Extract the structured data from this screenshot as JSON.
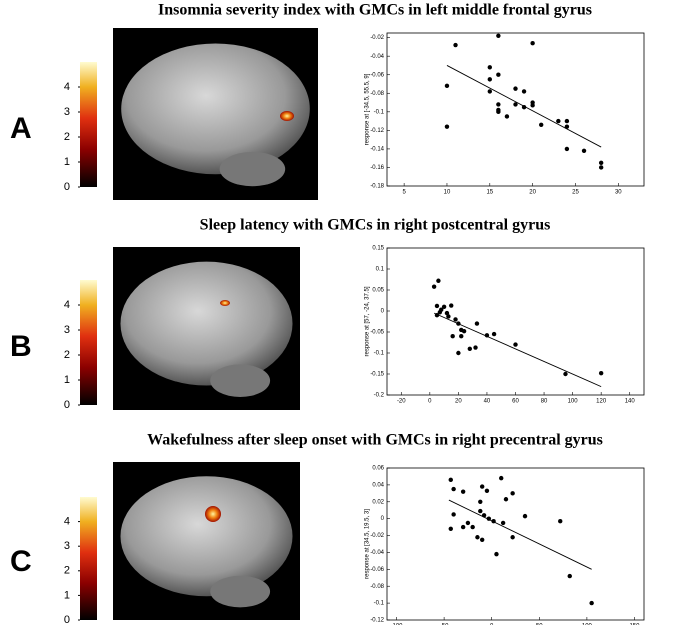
{
  "chart_data": [
    {
      "type": "scatter",
      "panel_label": "A",
      "title": "Insomnia severity index with GMCs in left middle frontal gyrus",
      "ylabel": "response at [-34.5, 55.5, 9]",
      "color": "#000000",
      "x": [
        10,
        10,
        11,
        15,
        15,
        16,
        16,
        16,
        16,
        16,
        17,
        18,
        18,
        19,
        20,
        20,
        20,
        21,
        23,
        24,
        24,
        24,
        26,
        28,
        28,
        15,
        19
      ],
      "values": [
        -0.072,
        -0.116,
        -0.028,
        -0.052,
        -0.065,
        -0.018,
        -0.06,
        -0.092,
        -0.098,
        -0.1,
        -0.105,
        -0.075,
        -0.092,
        -0.078,
        -0.026,
        -0.09,
        -0.093,
        -0.114,
        -0.11,
        -0.11,
        -0.116,
        -0.14,
        -0.142,
        -0.155,
        -0.16,
        -0.078,
        -0.095
      ],
      "fit": {
        "x": [
          10,
          28
        ],
        "y": [
          -0.05,
          -0.138
        ]
      },
      "xlim": [
        3,
        33
      ],
      "xticks": [
        5,
        10,
        15,
        20,
        25,
        30
      ],
      "ylim": [
        -0.18,
        -0.015
      ],
      "yticks": [
        -0.02,
        -0.04,
        -0.06,
        -0.08,
        -0.1,
        -0.12,
        -0.14,
        -0.16,
        -0.18
      ],
      "colorbar_lim": [
        0,
        5
      ],
      "colorbar_ticks": [
        0,
        1,
        2,
        3,
        4
      ]
    },
    {
      "type": "scatter",
      "panel_label": "B",
      "title": "Sleep latency with GMCs in right postcentral gyrus",
      "ylabel": "response at [57, -24, 37.5]",
      "color": "#000000",
      "x": [
        3,
        6,
        5,
        8,
        10,
        5,
        7,
        12,
        13,
        15,
        18,
        20,
        22,
        20,
        24,
        16,
        28,
        32,
        33,
        40,
        45,
        60,
        95,
        120,
        22
      ],
      "values": [
        0.058,
        0.072,
        0.012,
        0.003,
        0.01,
        -0.01,
        -0.003,
        -0.005,
        -0.013,
        0.013,
        -0.02,
        -0.03,
        -0.045,
        -0.1,
        -0.048,
        -0.06,
        -0.09,
        -0.087,
        -0.03,
        -0.058,
        -0.055,
        -0.08,
        -0.15,
        -0.148,
        -0.06
      ],
      "fit": {
        "x": [
          3,
          120
        ],
        "y": [
          -0.005,
          -0.18
        ]
      },
      "xlim": [
        -30,
        150
      ],
      "xticks": [
        -20,
        0,
        20,
        40,
        60,
        80,
        100,
        120,
        140
      ],
      "ylim": [
        -0.2,
        0.15
      ],
      "yticks": [
        0.15,
        0.1,
        0.05,
        0,
        -0.05,
        -0.1,
        -0.15,
        -0.2
      ],
      "colorbar_lim": [
        0,
        5
      ],
      "colorbar_ticks": [
        0,
        1,
        2,
        3,
        4
      ]
    },
    {
      "type": "scatter",
      "panel_label": "C",
      "title": "Wakefulness  after sleep onset with GMCs in right precentral gyrus",
      "ylabel": "response at [34.5, 19.5, 3]",
      "color": "#000000",
      "x": [
        -43,
        -40,
        -30,
        -10,
        -5,
        -12,
        10,
        15,
        22,
        -40,
        -43,
        -30,
        -25,
        -20,
        -12,
        -8,
        -3,
        2,
        -10,
        -15,
        5,
        12,
        22,
        35,
        72,
        82,
        105
      ],
      "values": [
        0.046,
        0.035,
        0.032,
        0.038,
        0.033,
        0.02,
        0.048,
        0.023,
        0.03,
        0.005,
        -0.012,
        -0.01,
        -0.005,
        -0.01,
        0.009,
        0.004,
        0.0,
        -0.003,
        -0.025,
        -0.022,
        -0.042,
        -0.005,
        -0.022,
        0.003,
        -0.003,
        -0.068,
        -0.1
      ],
      "fit": {
        "x": [
          -45,
          105
        ],
        "y": [
          0.022,
          -0.06
        ]
      },
      "xlim": [
        -110,
        160
      ],
      "xticks": [
        -100,
        -50,
        0,
        50,
        100,
        150
      ],
      "ylim": [
        -0.12,
        0.06
      ],
      "yticks": [
        0.06,
        0.04,
        0.02,
        0,
        -0.02,
        -0.04,
        -0.06,
        -0.08,
        -0.1,
        -0.12
      ],
      "colorbar_lim": [
        0,
        5
      ],
      "colorbar_ticks": [
        0,
        1,
        2,
        3,
        4
      ]
    }
  ]
}
